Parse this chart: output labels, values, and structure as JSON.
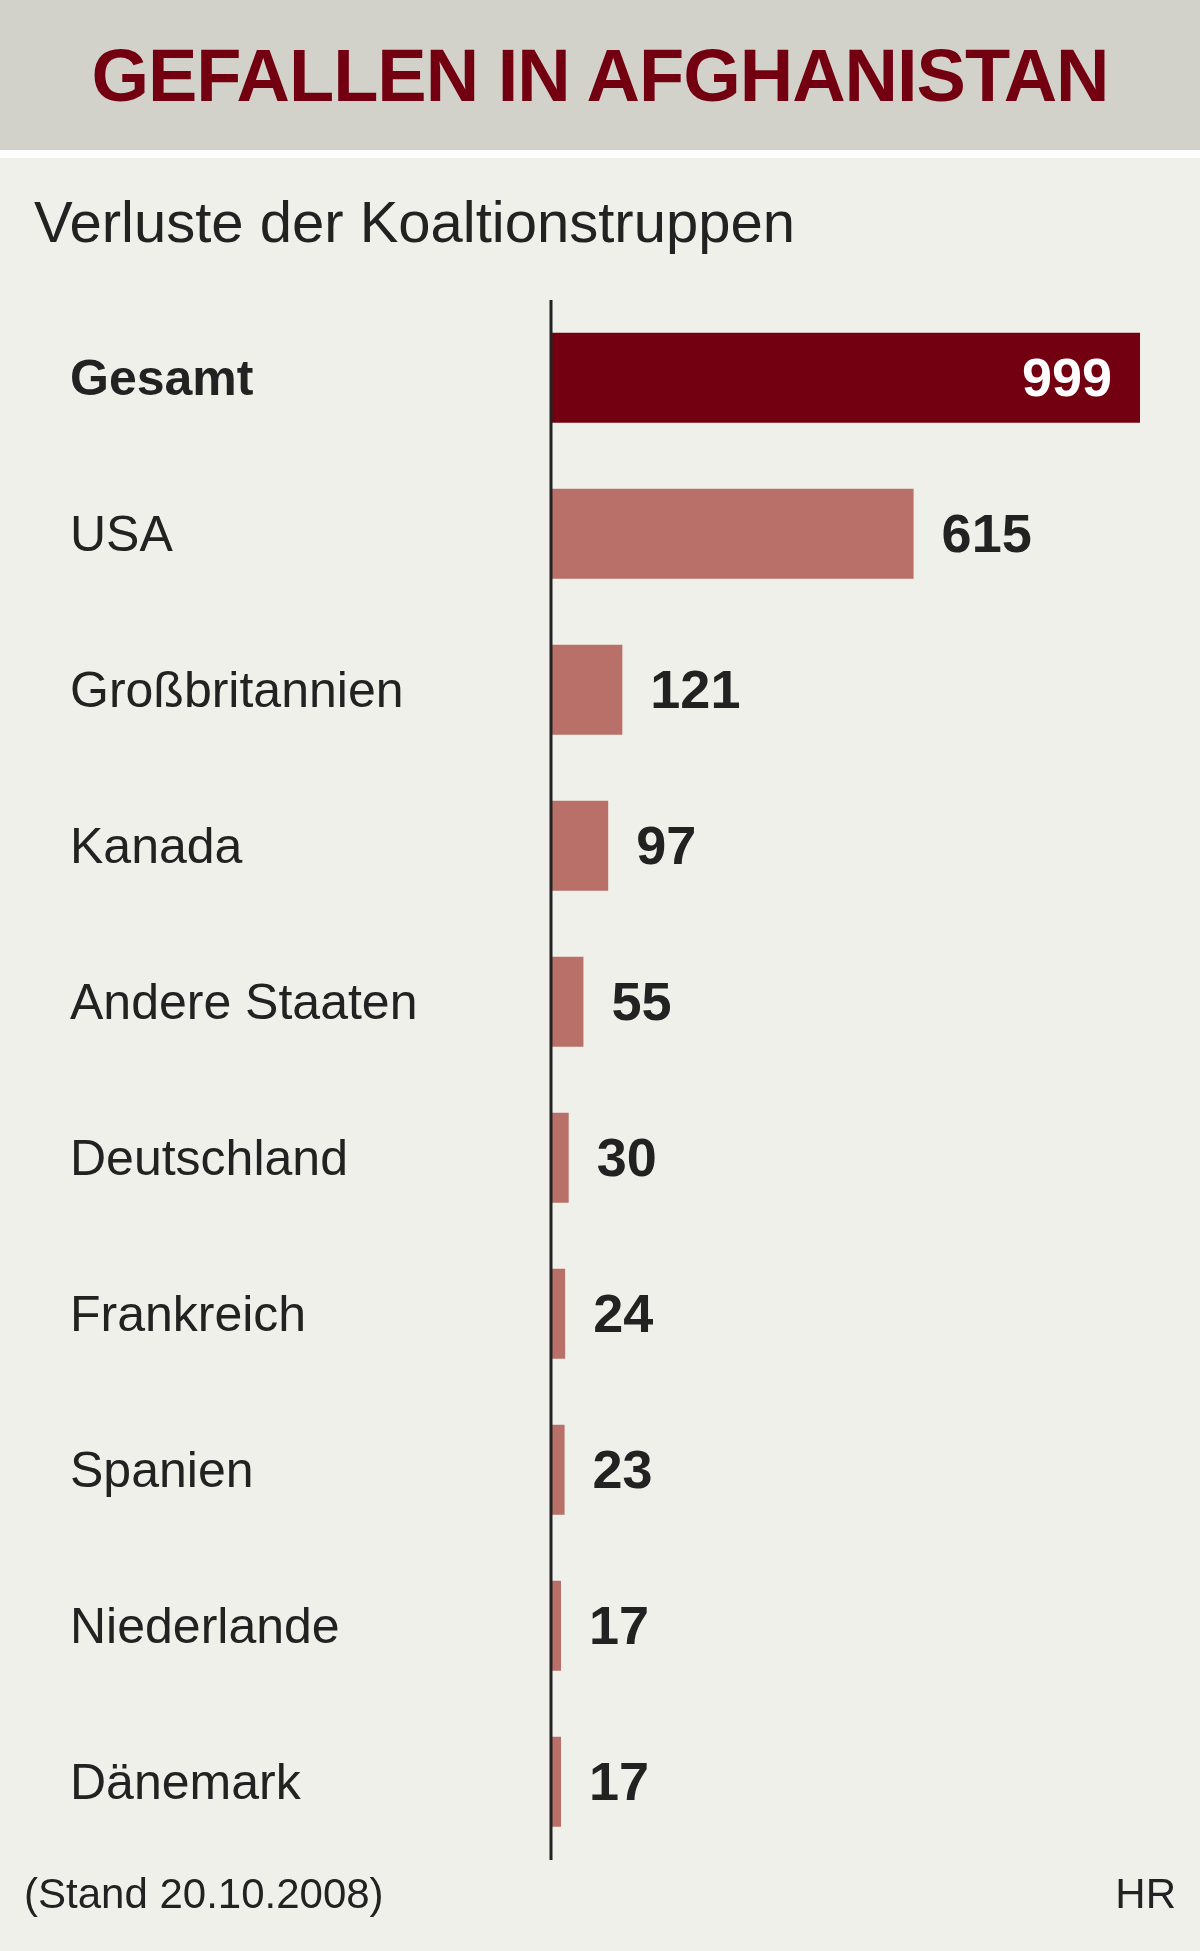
{
  "chart_data": {
    "type": "bar",
    "orientation": "horizontal",
    "title": "GEFALLEN IN AFGHANISTAN",
    "subtitle": "Verluste der Koaltionstruppen",
    "categories": [
      "Gesamt",
      "USA",
      "Großbritannien",
      "Kanada",
      "Andere Staaten",
      "Deutschland",
      "Frankreich",
      "Spanien",
      "Niederlande",
      "Dänemark"
    ],
    "values": [
      999,
      615,
      121,
      97,
      55,
      30,
      24,
      23,
      17,
      17
    ],
    "colors": [
      "#730010",
      "#b87068",
      "#b87068",
      "#b87068",
      "#b87068",
      "#b87068",
      "#b87068",
      "#b87068",
      "#b87068",
      "#b87068"
    ],
    "data_labels": true,
    "annotations": [
      "(Stand 20.10.2008)",
      "HR"
    ]
  }
}
